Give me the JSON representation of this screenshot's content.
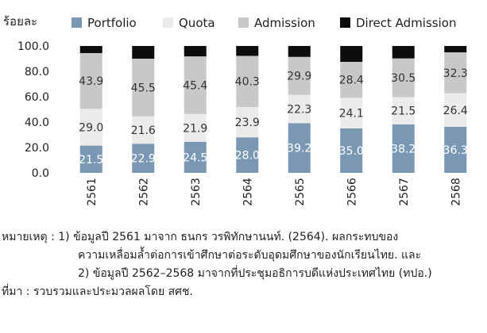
{
  "chart_data": {
    "type": "bar",
    "stacked": true,
    "ylabel": "ร้อยละ",
    "ylim": [
      0,
      100
    ],
    "yticks": [
      "0.0",
      "20.0",
      "40.0",
      "60.0",
      "80.0",
      "100.0"
    ],
    "grid": false,
    "legend_position": "top",
    "categories": [
      "2561",
      "2562",
      "2563",
      "2564",
      "2565",
      "2566",
      "2567",
      "2568"
    ],
    "series": [
      {
        "name": "Portfolio",
        "color": "#7a98b4",
        "values": [
          21.5,
          22.9,
          24.5,
          28.0,
          39.2,
          35.0,
          38.2,
          36.3
        ]
      },
      {
        "name": "Quota",
        "color": "#ebebeb",
        "values": [
          29.0,
          21.6,
          21.9,
          23.9,
          22.3,
          24.1,
          21.5,
          26.4
        ]
      },
      {
        "name": "Admission",
        "color": "#c8c8c8",
        "values": [
          43.9,
          45.5,
          45.4,
          40.3,
          29.9,
          28.4,
          30.5,
          32.3
        ]
      },
      {
        "name": "Direct Admission",
        "color": "#0d0d0d",
        "values": [
          5.6,
          10.0,
          8.2,
          7.8,
          8.6,
          12.5,
          9.8,
          5.0
        ]
      }
    ],
    "labeled_series": [
      "Portfolio",
      "Quota",
      "Admission"
    ]
  },
  "notes": {
    "note_label": "หมายเหตุ :",
    "note_lines": [
      "1) ข้อมูลปี 2561 มาจาก ธนกร วรพิทักษานนท์. (2564). ผลกระทบของ",
      "ความเหลื่อมล้ำต่อการเข้าศึกษาต่อระดับอุดมศึกษาของนักเรียนไทย. และ",
      "2) ข้อมูลปี 2562–2568 มาจากที่ประชุมอธิการบดีแห่งประเทศไทย (ทปอ.)"
    ],
    "source_label": "ที่มา :",
    "source_text": "รวบรวมและประมวลผลโดย สศช."
  }
}
